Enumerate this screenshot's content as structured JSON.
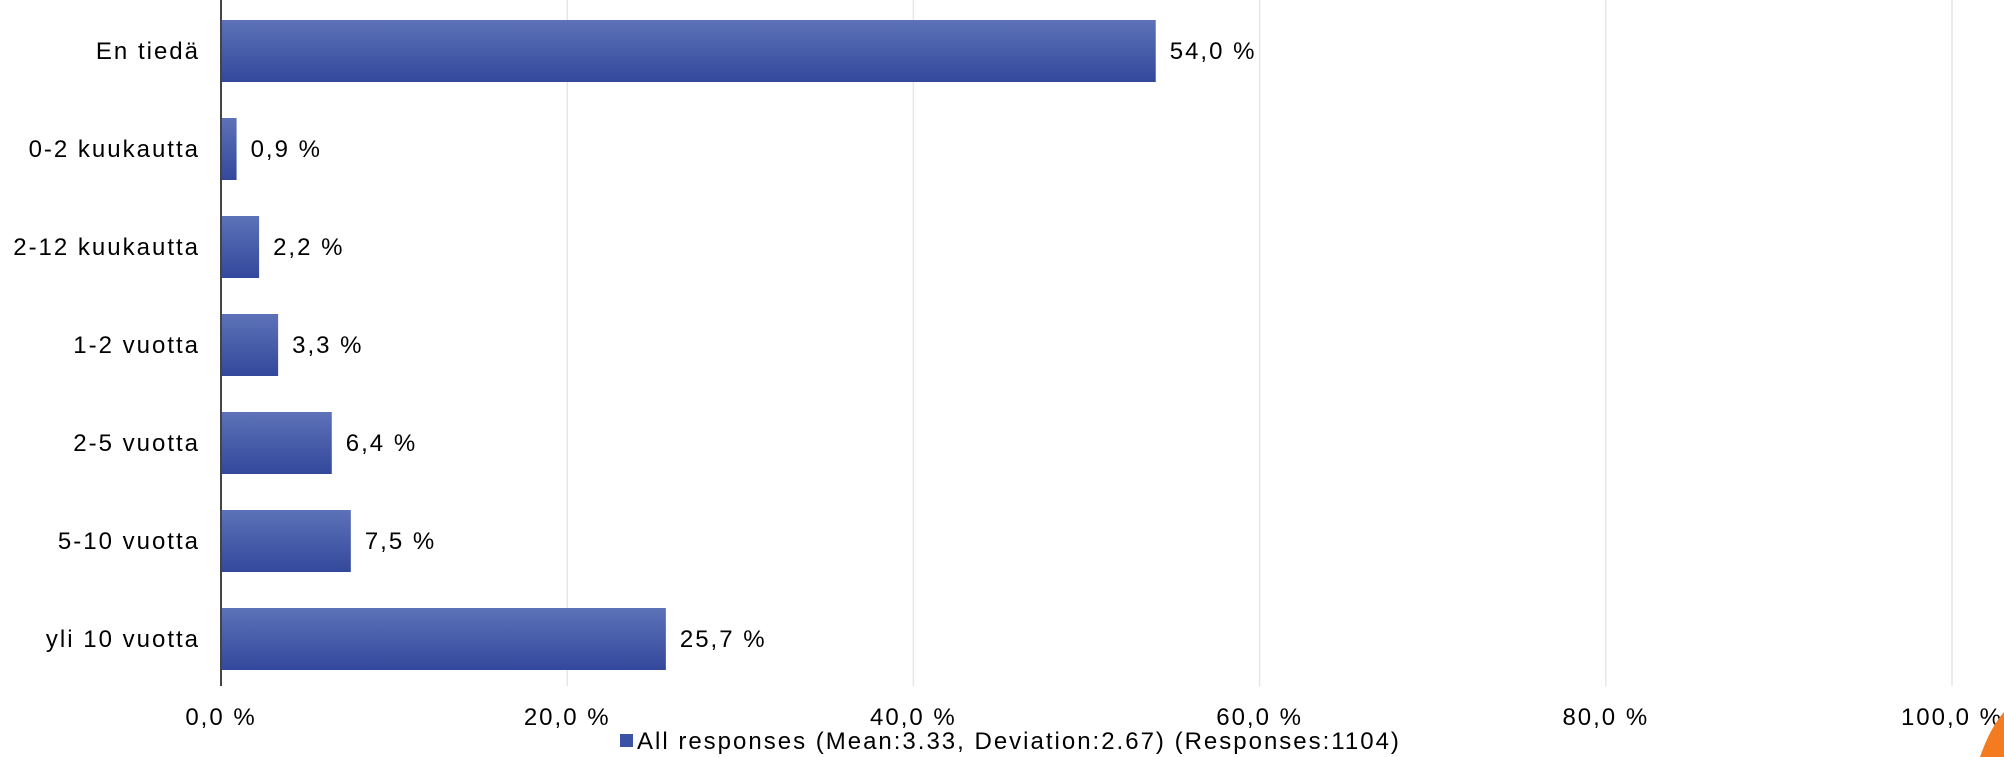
{
  "chart_data": {
    "type": "bar",
    "orientation": "horizontal",
    "categories": [
      "En tiedä",
      "0-2 kuukautta",
      "2-12 kuukautta",
      "1-2 vuotta",
      "2-5 vuotta",
      "5-10 vuotta",
      "yli 10 vuotta"
    ],
    "series": [
      {
        "name": "All responses (Mean:3.33, Deviation:2.67) (Responses:1104)",
        "values": [
          54.0,
          0.9,
          2.2,
          3.3,
          6.4,
          7.5,
          25.7
        ],
        "value_labels": [
          "54,0 %",
          "0,9 %",
          "2,2 %",
          "3,3 %",
          "6,4 %",
          "7,5 %",
          "25,7 %"
        ],
        "color": "#3b53a4"
      }
    ],
    "xlim": [
      0,
      100
    ],
    "x_ticks": [
      0,
      20,
      40,
      60,
      80,
      100
    ],
    "x_tick_labels": [
      "0,0 %",
      "20,0 %",
      "40,0 %",
      "60,0 %",
      "80,0 %",
      "100,0 %"
    ],
    "grid": true,
    "legend_position": "bottom"
  },
  "colors": {
    "bar": "#3b53a4",
    "bar_highlight": "#5a6fb5",
    "grid": "#e6e6e6",
    "axis": "#444444",
    "corner_accent": "#f47b20"
  }
}
